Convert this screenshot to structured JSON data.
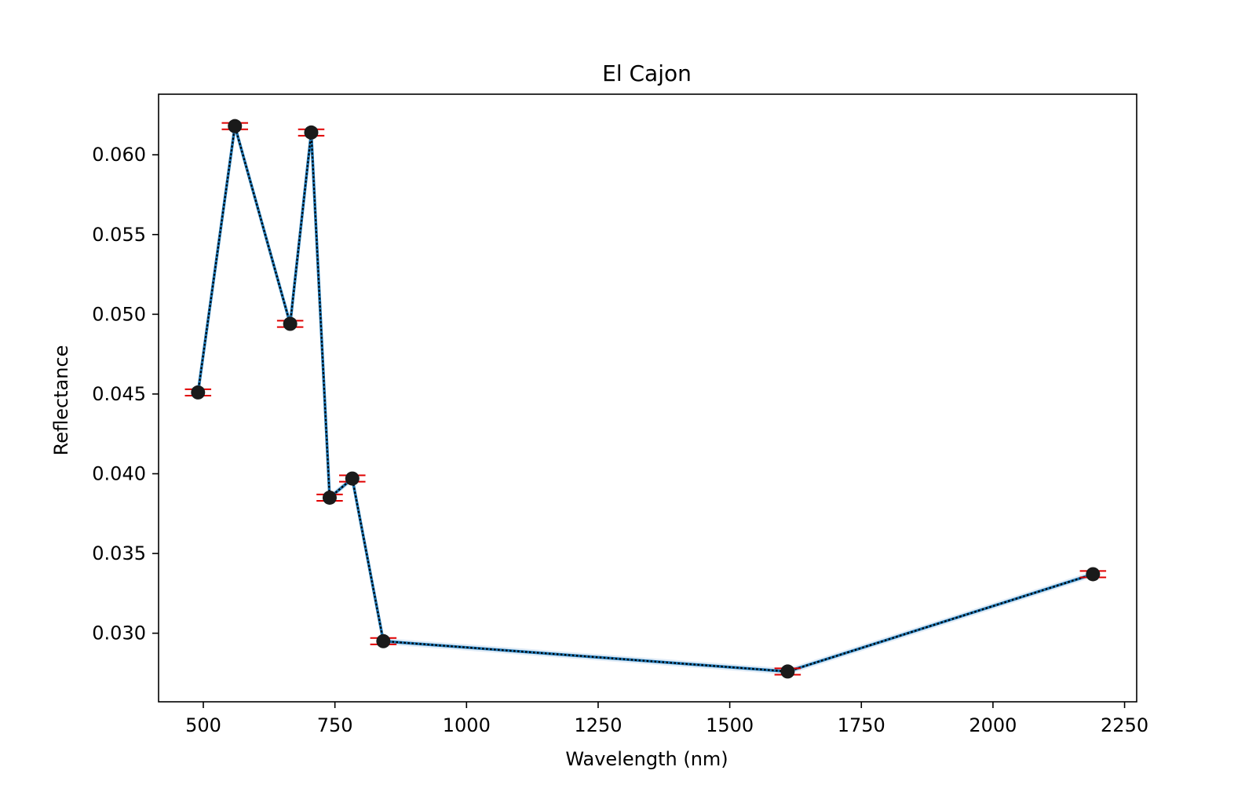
{
  "chart_data": {
    "type": "line",
    "title": "El Cajon",
    "xlabel": "Wavelength (nm)",
    "ylabel": "Reflectance",
    "xlim": [
      415,
      2273
    ],
    "ylim": [
      0.0257,
      0.0638
    ],
    "xticks": [
      500,
      750,
      1000,
      1250,
      1500,
      1750,
      2000,
      2250
    ],
    "xtick_labels": [
      "500",
      "750",
      "1000",
      "1250",
      "1500",
      "1750",
      "2000",
      "2250"
    ],
    "yticks": [
      0.03,
      0.035,
      0.04,
      0.045,
      0.05,
      0.055,
      0.06
    ],
    "ytick_labels": [
      "0.030",
      "0.035",
      "0.040",
      "0.045",
      "0.050",
      "0.055",
      "0.060"
    ],
    "grid": false,
    "series": [
      {
        "x": [
          490,
          560,
          665,
          705,
          740,
          783,
          842,
          1610,
          2190
        ],
        "y": [
          0.0451,
          0.0618,
          0.0494,
          0.0614,
          0.0385,
          0.0397,
          0.0295,
          0.0276,
          0.0337
        ],
        "color": "#1f77b4"
      }
    ],
    "error_x": [
      25,
      25,
      25,
      25,
      25,
      25,
      25,
      25,
      25
    ],
    "error_y": [
      0.0002,
      0.0002,
      0.0002,
      0.0002,
      0.0002,
      0.0002,
      0.0002,
      0.0002,
      0.0002
    ],
    "colors": {
      "line": "#1f77b4",
      "overlay": "#000000",
      "marker": "#1a1a1a",
      "errorbar": "#e00000",
      "band": "#c6dbef"
    }
  }
}
